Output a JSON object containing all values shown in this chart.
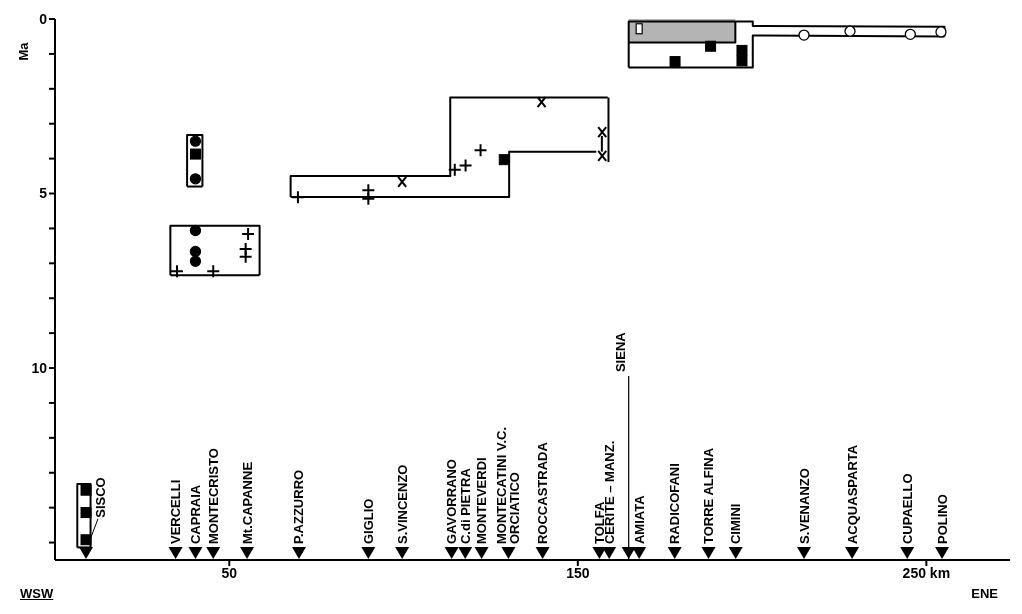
{
  "chart_data": {
    "type": "scatter",
    "ylabel": "Ma",
    "xlim": [
      0,
      274
    ],
    "ylim": [
      15.5,
      0
    ],
    "xticks": [
      50,
      150,
      {
        "value": 250,
        "label": "250 km"
      }
    ],
    "yticks": [
      0,
      {
        "value": 1,
        "label": null
      },
      {
        "value": 2,
        "label": null
      },
      {
        "value": 3,
        "label": null
      },
      {
        "value": 4,
        "label": null
      },
      5,
      {
        "value": 6,
        "label": null
      },
      {
        "value": 7,
        "label": null
      },
      {
        "value": 8,
        "label": null
      },
      {
        "value": 9,
        "label": null
      },
      10,
      {
        "value": 11,
        "label": null
      },
      {
        "value": 12,
        "label": null
      },
      {
        "value": 13,
        "label": null
      },
      {
        "value": 14,
        "label": null
      },
      {
        "value": 15,
        "label": null
      }
    ],
    "series": [
      {
        "type": "area",
        "color": "#b4b4b4",
        "x": [
          164.6,
          195.2
        ],
        "values": [
          0.67,
          0.67
        ]
      },
      {
        "type": "line",
        "color": "#000000",
        "marker": "none",
        "x": [
          164.6,
          195.2,
          195.2
        ],
        "values": [
          0.67,
          0.67,
          0.07
        ]
      },
      {
        "type": "line",
        "color": "#000000",
        "marker": "none",
        "x": [
          37.9,
          37.9,
          42.3,
          42.3
        ],
        "values": [
          4.8,
          3.32,
          3.32,
          4.8
        ]
      },
      {
        "type": "line",
        "color": "#000000",
        "marker": "none",
        "x": [
          37.9,
          42.3
        ],
        "values": [
          4.8,
          4.8
        ]
      },
      {
        "type": "line",
        "color": "#000000",
        "marker": "none",
        "x": [
          33.1,
          33.1,
          58.7,
          58.7
        ],
        "values": [
          7.34,
          5.92,
          5.92,
          7.34
        ]
      },
      {
        "type": "line",
        "color": "#000000",
        "marker": "none",
        "x": [
          33.1,
          58.7
        ],
        "values": [
          7.34,
          7.34
        ]
      },
      {
        "type": "line",
        "color": "#000000",
        "marker": "none",
        "x": [
          67.6,
          67.6,
          113.4,
          113.4,
          158.6
        ],
        "values": [
          5.1,
          4.5,
          4.5,
          2.25,
          2.25
        ]
      },
      {
        "type": "line",
        "color": "#000000",
        "marker": "none",
        "x": [
          67.6,
          130.3,
          130.3,
          155.3
        ],
        "values": [
          5.1,
          5.1,
          3.8,
          3.8
        ]
      },
      {
        "type": "line",
        "color": "#000000",
        "marker": "none",
        "x": [
          164.6,
          164.6,
          200.2,
          200.2,
          255.2,
          255.2
        ],
        "values": [
          1.39,
          0.07,
          0.07,
          0.2,
          0.22,
          0.5
        ]
      },
      {
        "type": "line",
        "color": "#000000",
        "marker": "none",
        "x": [
          164.6,
          200.2,
          200.2,
          255.2
        ],
        "values": [
          1.39,
          1.39,
          0.47,
          0.5
        ]
      },
      {
        "type": "line",
        "color": "#000000",
        "marker": "none",
        "x": [
          6.4,
          6.4,
          10.2,
          10.2
        ],
        "values": [
          15.14,
          13.32,
          13.32,
          15.14
        ]
      },
      {
        "type": "line",
        "color": "#000000",
        "marker": "none",
        "x": [
          6.4,
          10.2
        ],
        "values": [
          15.14,
          15.14
        ]
      },
      {
        "type": "line",
        "color": "#000000",
        "marker": "none",
        "x": [
          158.8,
          158.8
        ],
        "values": [
          2.25,
          4.1
        ]
      },
      {
        "type": "line",
        "color": "#000000",
        "marker": "none",
        "x": [
          156.9,
          156.9
        ],
        "values": [
          3.35,
          3.8
        ]
      },
      {
        "color": "#000000",
        "marker": "circle",
        "x": [
          40.3,
          40.3,
          40.3,
          40.3,
          40.3
        ],
        "values": [
          3.5,
          4.58,
          6.06,
          6.66,
          6.94
        ]
      },
      {
        "color": "#000000",
        "marker": "square",
        "x": [
          40.3,
          128.9,
          177.9,
          188.1,
          197.1,
          197.1,
          8.9,
          8.9,
          8.9
        ],
        "values": [
          3.87,
          4.03,
          1.22,
          0.78,
          0.9,
          1.2,
          13.5,
          14.14,
          14.92
        ]
      },
      {
        "color": "#000000",
        "marker": "cross",
        "x": [
          35.0,
          45.4,
          55.4,
          54.7,
          54.7,
          69.7,
          89.9,
          89.9,
          114.7,
          117.8,
          122.1
        ],
        "values": [
          7.23,
          7.23,
          6.16,
          6.59,
          6.81,
          5.11,
          4.91,
          5.15,
          4.32,
          4.2,
          3.76
        ]
      },
      {
        "color": "#000000",
        "marker": "x",
        "x": [
          99.6,
          139.6,
          157,
          157
        ],
        "values": [
          4.67,
          2.38,
          3.24,
          3.92
        ]
      },
      {
        "color": "#ffffff",
        "marker": "circle",
        "x": [
          214.9,
          228.1,
          245.4,
          254.2
        ],
        "values": [
          0.46,
          0.35,
          0.44,
          0.37
        ]
      },
      {
        "color": "#ffffff",
        "marker": "square",
        "x": [
          167.6
        ],
        "values": [
          0.28
        ]
      },
      {
        "color": "#000000",
        "marker": "triangle",
        "x": [
          8.9,
          34.6,
          40.3,
          45.4,
          55.1,
          70,
          89.9,
          99.6,
          113.8,
          117.7,
          122.4,
          130.1,
          139.9,
          156.2,
          159,
          164.6,
          167.6,
          177.8,
          187.5,
          195.3,
          214.9,
          228.7,
          244.5,
          254.5
        ],
        "values": [
          15.3,
          15.3,
          15.3,
          15.3,
          15.3,
          15.3,
          15.3,
          15.3,
          15.3,
          15.3,
          15.3,
          15.3,
          15.3,
          15.3,
          15.3,
          15.3,
          15.3,
          15.3,
          15.3,
          15.3,
          15.3,
          15.3,
          15.3,
          15.3
        ]
      }
    ],
    "ref_lines": [
      {
        "axis": "x",
        "value": 164.6,
        "label": "SIENA",
        "color": "#000000"
      }
    ],
    "annotations": [
      "WSW",
      "ENE",
      {
        "text": "SISCO",
        "x": 8.9,
        "y": 14.92
      },
      {
        "text": "VERCELLI",
        "x": 34.6,
        "y": 15.3
      },
      {
        "text": "CAPRAIA",
        "x": 40.3,
        "y": 15.3
      },
      {
        "text": "MONTECRISTO",
        "x": 45.4,
        "y": 15.3
      },
      {
        "text": "Mt.CAPANNE",
        "x": 55.1,
        "y": 15.3
      },
      {
        "text": "P.AZZURRO",
        "x": 70,
        "y": 15.3
      },
      {
        "text": "GIGLIO",
        "x": 89.9,
        "y": 15.3
      },
      {
        "text": "S.VINCENZO",
        "x": 99.6,
        "y": 15.3
      },
      {
        "text": "GAVORRANO",
        "x": 113.8,
        "y": 15.3
      },
      {
        "text": "C.di PIETRA",
        "x": 117.7,
        "y": 15.3
      },
      {
        "text": "MONTEVERDI",
        "x": 122.4,
        "y": 15.3
      },
      {
        "text": "MONTECATINI  V.C.\nORCIATICO",
        "x": 130.1,
        "y": 15.3
      },
      {
        "text": "ROCCASTRADA",
        "x": 139.9,
        "y": 15.3
      },
      {
        "text": "TOLFA",
        "x": 156.2,
        "y": 15.3
      },
      {
        "text": "CERITE – MANZ.",
        "x": 159,
        "y": 15.3
      },
      {
        "text": "AMIATA",
        "x": 167.6,
        "y": 15.3
      },
      {
        "text": "RADICOFANI",
        "x": 177.8,
        "y": 15.3
      },
      {
        "text": "TORRE  ALFINA",
        "x": 187.5,
        "y": 15.3
      },
      {
        "text": "CIMINI",
        "x": 195.3,
        "y": 15.3
      },
      {
        "text": "S.VENANZO",
        "x": 214.9,
        "y": 15.3
      },
      {
        "text": "ACQUASPARTA",
        "x": 228.7,
        "y": 15.3
      },
      {
        "text": "CUPAELLO",
        "x": 244.5,
        "y": 15.3
      },
      {
        "text": "POLINO",
        "x": 254.5,
        "y": 15.3
      }
    ]
  }
}
